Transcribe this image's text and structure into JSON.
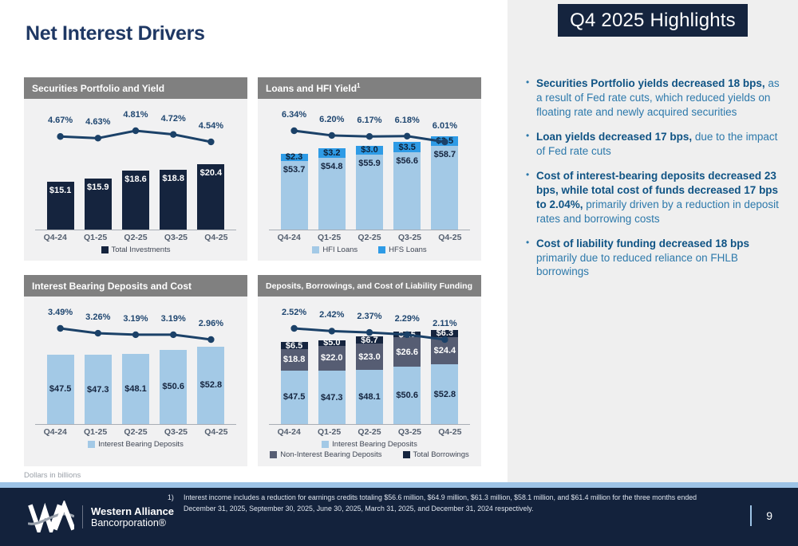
{
  "slide": {
    "title": "Net Interest Drivers",
    "scale_note": "Dollars in billions"
  },
  "colors": {
    "navy": "#15243e",
    "light_blue": "#a3c9e6",
    "bright_blue": "#2e9be6",
    "slate": "#565d73",
    "line": "#1b4168",
    "separator": "#9dc3e6",
    "header_gray": "#808080"
  },
  "chart_data": [
    {
      "id": "securities",
      "type": "bar",
      "title": "Securities Portfolio and Yield",
      "title_sup": "",
      "categories": [
        "Q4-24",
        "Q1-25",
        "Q2-25",
        "Q3-25",
        "Q4-25"
      ],
      "series": [
        {
          "name": "Total Investments",
          "color": "#15243e",
          "label_color": "#ffffff",
          "label_pos": "top",
          "prefix": "$",
          "values": [
            15.1,
            15.9,
            18.6,
            18.8,
            20.4
          ]
        }
      ],
      "line": {
        "labels": [
          "4.67%",
          "4.63%",
          "4.81%",
          "4.72%",
          "4.54%"
        ],
        "values": [
          4.67,
          4.63,
          4.81,
          4.72,
          4.54
        ]
      },
      "bar_ylim": [
        0,
        41
      ],
      "legend_rows": [
        [
          0
        ]
      ]
    },
    {
      "id": "loans",
      "type": "bar",
      "title": "Loans and HFI Yield",
      "title_sup": "1",
      "categories": [
        "Q4-24",
        "Q1-25",
        "Q2-25",
        "Q3-25",
        "Q4-25"
      ],
      "series": [
        {
          "name": "HFI Loans",
          "color": "#a3c9e6",
          "label_color": "#15243e",
          "label_pos": "top",
          "prefix": "$",
          "values": [
            53.7,
            54.8,
            55.9,
            56.6,
            58.7
          ]
        },
        {
          "name": "HFS Loans",
          "color": "#2e9be6",
          "label_color": "#0e2036",
          "label_pos": "center",
          "prefix": "$",
          "values": [
            2.3,
            3.2,
            3.0,
            3.5,
            3.5
          ]
        }
      ],
      "line": {
        "labels": [
          "6.34%",
          "6.20%",
          "6.17%",
          "6.18%",
          "6.01%"
        ],
        "values": [
          6.34,
          6.2,
          6.17,
          6.18,
          6.01
        ]
      },
      "bar_ylim": [
        30,
        75
      ],
      "legend_rows": [
        [
          0,
          1
        ]
      ]
    },
    {
      "id": "ibd",
      "type": "bar",
      "title": "Interest Bearing Deposits and Cost",
      "title_sup": "",
      "categories": [
        "Q4-24",
        "Q1-25",
        "Q2-25",
        "Q3-25",
        "Q4-25"
      ],
      "series": [
        {
          "name": "Interest Bearing Deposits",
          "color": "#a3c9e6",
          "label_color": "#15243e",
          "label_pos": "center",
          "prefix": "$",
          "values": [
            47.5,
            47.3,
            48.1,
            50.6,
            52.8
          ]
        }
      ],
      "line": {
        "labels": [
          "3.49%",
          "3.26%",
          "3.19%",
          "3.19%",
          "2.96%"
        ],
        "values": [
          3.49,
          3.26,
          3.19,
          3.19,
          2.96
        ]
      },
      "bar_ylim": [
        0,
        87
      ],
      "legend_rows": [
        [
          0
        ]
      ]
    },
    {
      "id": "funding",
      "type": "bar",
      "title": "Deposits, Borrowings, and Cost of Liability Funding",
      "title_sup": "",
      "categories": [
        "Q4-24",
        "Q1-25",
        "Q2-25",
        "Q3-25",
        "Q4-25"
      ],
      "series": [
        {
          "name": "Interest Bearing Deposits",
          "color": "#a3c9e6",
          "label_color": "#15243e",
          "label_pos": "center",
          "prefix": "$",
          "values": [
            47.5,
            47.3,
            48.1,
            50.6,
            52.8
          ]
        },
        {
          "name": "Non-Interest Bearing Deposits",
          "color": "#565d73",
          "label_color": "#ffffff",
          "label_pos": "center",
          "prefix": "$",
          "values": [
            18.8,
            22.0,
            23.0,
            26.6,
            24.4
          ]
        },
        {
          "name": "Total Borrowings",
          "color": "#15243e",
          "label_color": "#ffffff",
          "label_pos": "center",
          "prefix": "$",
          "values": [
            6.5,
            5.0,
            6.7,
            4.5,
            6.3
          ]
        }
      ],
      "line": {
        "labels": [
          "2.52%",
          "2.42%",
          "2.37%",
          "2.29%",
          "2.11%"
        ],
        "values": [
          2.52,
          2.42,
          2.37,
          2.29,
          2.11
        ]
      },
      "bar_ylim": [
        0,
        113
      ],
      "legend_rows": [
        [
          0
        ],
        [
          1,
          2
        ]
      ]
    }
  ],
  "highlights": {
    "title": "Q4 2025 Highlights",
    "bullets": [
      {
        "bold": "Securities Portfolio yields decreased 18 bps,",
        "rest": "as a result of Fed rate cuts, which reduced yields on floating rate and newly acquired securities"
      },
      {
        "bold": "Loan yields decreased 17 bps,",
        "rest": "due to the impact of Fed rate cuts"
      },
      {
        "bold": "Cost of interest-bearing deposits decreased 23 bps, while total cost of funds decreased 17 bps to 2.04%,",
        "rest": "primarily driven by a reduction in deposit rates and borrowing costs"
      },
      {
        "bold": "Cost of liability funding decreased 18 bps",
        "rest": "primarily due to reduced reliance on FHLB borrowings"
      }
    ]
  },
  "footer": {
    "note_ref": "1)",
    "note_text": "Interest income includes a reduction for earnings credits totaling $56.6 million, $64.9 million, $61.3 million, $58.1 million, and $61.4 million for the three months ended December 31, 2025, September 30, 2025, June 30, 2025, March 31, 2025, and December 31, 2024 respectively.",
    "logo_line1": "Western Alliance",
    "logo_line2": "Bancorporation®",
    "page_number": "9"
  }
}
